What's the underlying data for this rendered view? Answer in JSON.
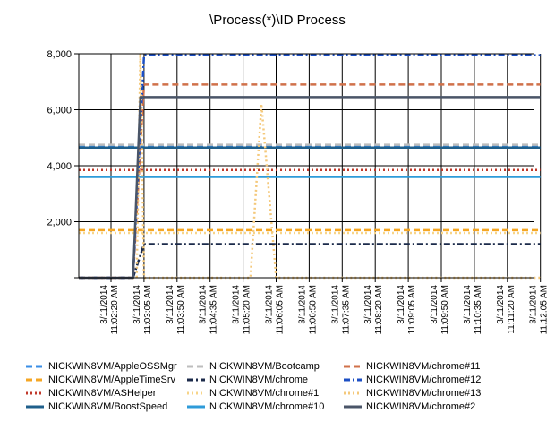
{
  "chart_data": {
    "type": "line",
    "title": "\\Process(*)\\ID Process",
    "xlabel": "",
    "ylabel": "",
    "ylim": [
      0,
      8000
    ],
    "yticks": [
      "8,000",
      "6,000",
      "4,000",
      "2,000"
    ],
    "grid": true,
    "legend_position": "bottom",
    "x": [
      "3/11/2014 11:02:20 AM",
      "3/11/2014 11:03:05 AM",
      "3/11/2014 11:03:50 AM",
      "3/11/2014 11:04:35 AM",
      "3/11/2014 11:05:20 AM",
      "3/11/2014 11:06:05 AM",
      "3/11/2014 11:06:50 AM",
      "3/11/2014 11:07:35 AM",
      "3/11/2014 11:08:20 AM",
      "3/11/2014 11:09:05 AM",
      "3/11/2014 11:09:50 AM",
      "3/11/2014 11:10:35 AM",
      "3/11/2014 11:11:20 AM",
      "3/11/2014 11:12:05 AM"
    ],
    "x_dates": [
      "3/11/2014",
      "3/11/2014",
      "3/11/2014",
      "3/11/2014",
      "3/11/2014",
      "3/11/2014",
      "3/11/2014",
      "3/11/2014",
      "3/11/2014",
      "3/11/2014",
      "3/11/2014",
      "3/11/2014",
      "3/11/2014",
      "3/11/2014"
    ],
    "x_times": [
      "11:02:20 AM",
      "11:03:05 AM",
      "11:03:50 AM",
      "11:04:35 AM",
      "11:05:20 AM",
      "11:06:05 AM",
      "11:06:50 AM",
      "11:07:35 AM",
      "11:08:20 AM",
      "11:09:05 AM",
      "11:09:50 AM",
      "11:10:35 AM",
      "11:11:20 AM",
      "11:12:05 AM"
    ],
    "series": [
      {
        "name": "NICKWIN8VM/AppleOSSMgr",
        "color": "#3a8ee6",
        "dash": "dash",
        "points": [
          [
            "11:02:20",
            4700
          ],
          [
            "11:12:05",
            4700
          ]
        ]
      },
      {
        "name": "NICKWIN8VM/AppleTimeSrv",
        "color": "#f5a623",
        "dash": "dash",
        "points": [
          [
            "11:02:20",
            1700
          ],
          [
            "11:12:05",
            1700
          ]
        ]
      },
      {
        "name": "NICKWIN8VM/ASHelper",
        "color": "#c0392b",
        "dash": "dot",
        "points": [
          [
            "11:02:20",
            3850
          ],
          [
            "11:12:05",
            3850
          ]
        ]
      },
      {
        "name": "NICKWIN8VM/BoostSpeed",
        "color": "#1f5f8b",
        "dash": "solid",
        "points": [
          [
            "11:02:20",
            4650
          ],
          [
            "11:12:05",
            4650
          ]
        ]
      },
      {
        "name": "NICKWIN8VM/Bootcamp",
        "color": "#bdbdbd",
        "dash": "dash",
        "points": [
          [
            "11:02:20",
            4750
          ],
          [
            "11:12:05",
            4750
          ]
        ]
      },
      {
        "name": "NICKWIN8VM/chrome",
        "color": "#1b2a4a",
        "dash": "dashdot",
        "points": [
          [
            "11:02:20",
            0
          ],
          [
            "11:02:50",
            0
          ],
          [
            "11:03:05",
            1200
          ],
          [
            "11:12:05",
            1200
          ]
        ]
      },
      {
        "name": "NICKWIN8VM/chrome#1",
        "color": "#f7d488",
        "dash": "dot",
        "points": [
          [
            "11:02:20",
            1600
          ],
          [
            "11:12:05",
            1600
          ]
        ]
      },
      {
        "name": "NICKWIN8VM/chrome#10",
        "color": "#2e9bd9",
        "dash": "solid",
        "points": [
          [
            "11:02:20",
            3600
          ],
          [
            "11:12:05",
            3600
          ]
        ]
      },
      {
        "name": "NICKWIN8VM/chrome#11",
        "color": "#d0714a",
        "dash": "dash",
        "points": [
          [
            "11:02:50",
            0
          ],
          [
            "11:03:05",
            6900
          ],
          [
            "11:12:05",
            6900
          ]
        ]
      },
      {
        "name": "NICKWIN8VM/chrome#12",
        "color": "#1c4fc4",
        "dash": "dashdot",
        "points": [
          [
            "11:02:50",
            0
          ],
          [
            "11:03:05",
            7950
          ],
          [
            "11:12:05",
            7950
          ]
        ]
      },
      {
        "name": "NICKWIN8VM/chrome#13",
        "color": "#f4c87a",
        "dash": "dot",
        "points": [
          [
            "11:02:55",
            0
          ],
          [
            "11:03:00",
            8000
          ],
          [
            "11:03:05",
            0
          ],
          [
            "11:05:30",
            0
          ],
          [
            "11:05:45",
            6200
          ],
          [
            "11:06:05",
            0
          ],
          [
            "11:12:05",
            0
          ]
        ]
      },
      {
        "name": "NICKWIN8VM/chrome#2",
        "color": "#4a5568",
        "dash": "solid",
        "points": [
          [
            "11:02:50",
            0
          ],
          [
            "11:03:00",
            6450
          ],
          [
            "11:12:05",
            6450
          ]
        ]
      }
    ]
  },
  "legend": [
    "NICKWIN8VM/AppleOSSMgr",
    "NICKWIN8VM/AppleTimeSrv",
    "NICKWIN8VM/ASHelper",
    "NICKWIN8VM/BoostSpeed",
    "NICKWIN8VM/Bootcamp",
    "NICKWIN8VM/chrome",
    "NICKWIN8VM/chrome#1",
    "NICKWIN8VM/chrome#10",
    "NICKWIN8VM/chrome#11",
    "NICKWIN8VM/chrome#12",
    "NICKWIN8VM/chrome#13",
    "NICKWIN8VM/chrome#2"
  ]
}
